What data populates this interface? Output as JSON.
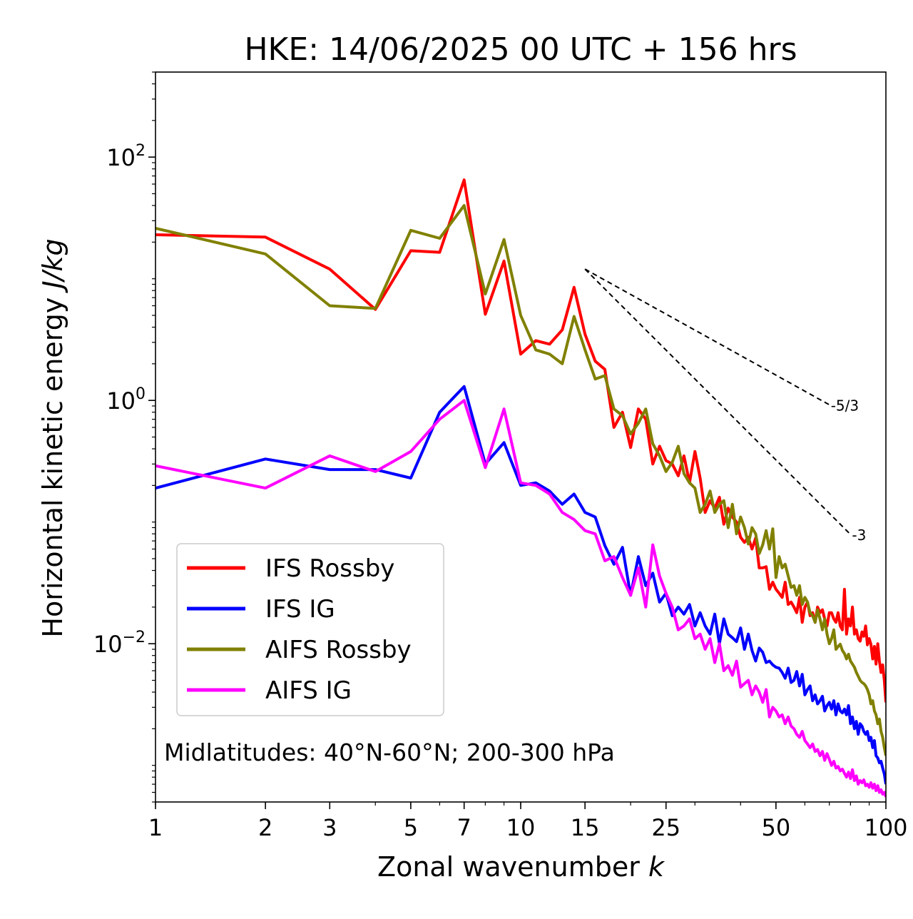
{
  "chart_data": {
    "type": "line",
    "title": "HKE: 14/06/2025 00 UTC + 156 hrs",
    "xlabel_text": "Zonal wavenumber ",
    "xlabel_var": "k",
    "ylabel_text": "Horizontal kinetic energy ",
    "ylabel_unit": "J/kg",
    "x_scale": "log",
    "y_scale": "log",
    "xlim": [
      1,
      100
    ],
    "ylim": [
      0.0005,
      500
    ],
    "x_ticks": [
      1,
      2,
      3,
      5,
      7,
      10,
      15,
      25,
      50,
      100
    ],
    "x_tick_labels": [
      "1",
      "2",
      "3",
      "5",
      "7",
      "10",
      "15",
      "25",
      "50",
      "100"
    ],
    "y_ticks": [
      100,
      1,
      0.01
    ],
    "y_tick_labels": [
      {
        "base": "10",
        "exp": "2"
      },
      {
        "base": "10",
        "exp": "0"
      },
      {
        "base": "10",
        "exp": "−2"
      }
    ],
    "grid": false,
    "legend_position": "lower-left",
    "annotation": "Midlatitudes: 40°N-60°N; 200-300 hPa",
    "reference_lines": [
      {
        "label": "-5/3",
        "slope": -1.6667,
        "x_start": 15,
        "x_end": 70,
        "y_start": 12
      },
      {
        "label": "-3",
        "slope": -3,
        "x_start": 15,
        "x_end": 80,
        "y_start": 12
      }
    ],
    "series": [
      {
        "name": "IFS Rossby",
        "color": "#ff0000",
        "x": [
          1,
          2,
          3,
          4,
          5,
          6,
          7,
          8,
          9,
          10,
          11,
          12,
          13,
          14,
          15,
          16,
          17,
          18,
          19,
          20,
          21,
          22,
          23,
          24,
          25,
          26,
          27,
          28,
          29,
          30,
          31,
          32,
          33,
          34,
          35,
          36,
          37,
          38,
          39,
          40,
          41,
          42,
          43,
          44,
          45,
          46,
          47,
          48,
          49,
          50,
          51,
          52,
          53,
          54,
          55,
          56,
          57,
          58,
          59,
          60,
          61,
          62,
          63,
          64,
          65,
          66,
          67,
          68,
          69,
          70,
          71,
          72,
          73,
          74,
          75,
          76,
          77,
          78,
          79,
          80,
          81,
          82,
          83,
          84,
          85,
          86,
          87,
          88,
          89,
          90,
          91,
          92,
          93,
          94,
          95,
          96,
          97,
          98,
          99,
          100
        ],
        "y": [
          23,
          22,
          12,
          5.6,
          17,
          16.5,
          65,
          5.1,
          14,
          2.4,
          3.1,
          2.9,
          3.8,
          8.5,
          3.5,
          2.1,
          1.8,
          0.6,
          0.8,
          0.41,
          0.85,
          0.7,
          0.3,
          0.42,
          0.32,
          0.3,
          0.24,
          0.35,
          0.21,
          0.38,
          0.23,
          0.12,
          0.15,
          0.13,
          0.16,
          0.096,
          0.13,
          0.11,
          0.1,
          0.075,
          0.068,
          0.075,
          0.06,
          0.074,
          0.042,
          0.042,
          0.043,
          0.028,
          0.032,
          0.028,
          0.026,
          0.024,
          0.032,
          0.021,
          0.022,
          0.02,
          0.018,
          0.024,
          0.015,
          0.02,
          0.022,
          0.017,
          0.018,
          0.015,
          0.02,
          0.018,
          0.019,
          0.016,
          0.014,
          0.018,
          0.018,
          0.016,
          0.015,
          0.018,
          0.014,
          0.013,
          0.028,
          0.012,
          0.016,
          0.014,
          0.02,
          0.012,
          0.013,
          0.011,
          0.0105,
          0.0125,
          0.0115,
          0.014,
          0.0098,
          0.011,
          0.0099,
          0.0075,
          0.0095,
          0.0068,
          0.01,
          0.0072,
          0.0058,
          0.0067,
          0.005,
          0.0033
        ]
      },
      {
        "name": "IFS IG",
        "color": "#0000ff",
        "x": [
          1,
          2,
          3,
          4,
          5,
          6,
          7,
          8,
          9,
          10,
          11,
          12,
          13,
          14,
          15,
          16,
          17,
          18,
          19,
          20,
          21,
          22,
          23,
          24,
          25,
          26,
          27,
          28,
          29,
          30,
          31,
          32,
          33,
          34,
          35,
          36,
          37,
          38,
          39,
          40,
          41,
          42,
          43,
          44,
          45,
          46,
          47,
          48,
          49,
          50,
          51,
          52,
          53,
          54,
          55,
          56,
          57,
          58,
          59,
          60,
          61,
          62,
          63,
          64,
          65,
          66,
          67,
          68,
          69,
          70,
          71,
          72,
          73,
          74,
          75,
          76,
          77,
          78,
          79,
          80,
          81,
          82,
          83,
          84,
          85,
          86,
          87,
          88,
          89,
          90,
          91,
          92,
          93,
          94,
          95,
          96,
          97,
          98,
          99,
          100
        ],
        "y": [
          0.19,
          0.33,
          0.27,
          0.27,
          0.23,
          0.8,
          1.3,
          0.3,
          0.45,
          0.2,
          0.21,
          0.18,
          0.14,
          0.17,
          0.12,
          0.11,
          0.064,
          0.045,
          0.062,
          0.025,
          0.052,
          0.03,
          0.038,
          0.022,
          0.026,
          0.017,
          0.02,
          0.0175,
          0.021,
          0.014,
          0.018,
          0.014,
          0.012,
          0.0175,
          0.01,
          0.016,
          0.012,
          0.0112,
          0.0104,
          0.0135,
          0.009,
          0.012,
          0.0088,
          0.0072,
          0.0092,
          0.0085,
          0.007,
          0.0072,
          0.0067,
          0.0064,
          0.0063,
          0.0058,
          0.0052,
          0.0063,
          0.0048,
          0.005,
          0.0059,
          0.0045,
          0.0056,
          0.0038,
          0.0042,
          0.0045,
          0.0034,
          0.0038,
          0.0032,
          0.0034,
          0.0037,
          0.0028,
          0.0031,
          0.0033,
          0.0029,
          0.0034,
          0.0026,
          0.0032,
          0.0028,
          0.0027,
          0.0029,
          0.0026,
          0.0031,
          0.0022,
          0.0025,
          0.002,
          0.0023,
          0.0018,
          0.0022,
          0.0021,
          0.0019,
          0.0018,
          0.0019,
          0.0016,
          0.0017,
          0.0014,
          0.0016,
          0.0012,
          0.00115,
          0.00105,
          0.00108,
          0.00095,
          0.00085,
          0.0007
        ]
      },
      {
        "name": "AIFS Rossby",
        "color": "#808000",
        "x": [
          1,
          2,
          3,
          4,
          5,
          6,
          7,
          8,
          9,
          10,
          11,
          12,
          13,
          14,
          15,
          16,
          17,
          18,
          19,
          20,
          21,
          22,
          23,
          24,
          25,
          26,
          27,
          28,
          29,
          30,
          31,
          32,
          33,
          34,
          35,
          36,
          37,
          38,
          39,
          40,
          41,
          42,
          43,
          44,
          45,
          46,
          47,
          48,
          49,
          50,
          51,
          52,
          53,
          54,
          55,
          56,
          57,
          58,
          59,
          60,
          61,
          62,
          63,
          64,
          65,
          66,
          67,
          68,
          69,
          70,
          71,
          72,
          73,
          74,
          75,
          76,
          77,
          78,
          79,
          80,
          81,
          82,
          83,
          84,
          85,
          86,
          87,
          88,
          89,
          90,
          91,
          92,
          93,
          94,
          95,
          96,
          97,
          98,
          99,
          100
        ],
        "y": [
          26,
          16,
          6,
          5.7,
          25,
          21.5,
          40,
          7.5,
          21,
          5,
          2.6,
          2.4,
          2,
          4.9,
          2.6,
          1.5,
          1.6,
          0.85,
          0.75,
          0.53,
          0.65,
          0.85,
          0.44,
          0.35,
          0.26,
          0.31,
          0.42,
          0.25,
          0.21,
          0.19,
          0.12,
          0.14,
          0.18,
          0.12,
          0.14,
          0.15,
          0.09,
          0.14,
          0.08,
          0.11,
          0.09,
          0.066,
          0.09,
          0.08,
          0.055,
          0.065,
          0.085,
          0.06,
          0.088,
          0.035,
          0.052,
          0.042,
          0.045,
          0.036,
          0.029,
          0.03,
          0.025,
          0.03,
          0.021,
          0.024,
          0.022,
          0.018,
          0.017,
          0.015,
          0.019,
          0.016,
          0.013,
          0.016,
          0.012,
          0.01,
          0.011,
          0.013,
          0.009,
          0.0095,
          0.0099,
          0.0088,
          0.0083,
          0.0075,
          0.0082,
          0.0072,
          0.0068,
          0.0064,
          0.0058,
          0.0054,
          0.005,
          0.0048,
          0.0047,
          0.0045,
          0.0042,
          0.0038,
          0.0032,
          0.0034,
          0.0028,
          0.0026,
          0.0022,
          0.0024,
          0.0019,
          0.0017,
          0.0014,
          0.0012
        ]
      },
      {
        "name": "AIFS IG",
        "color": "#ff00ff",
        "x": [
          1,
          2,
          3,
          4,
          5,
          6,
          7,
          8,
          9,
          10,
          11,
          12,
          13,
          14,
          15,
          16,
          17,
          18,
          19,
          20,
          21,
          22,
          23,
          24,
          25,
          26,
          27,
          28,
          29,
          30,
          31,
          32,
          33,
          34,
          35,
          36,
          37,
          38,
          39,
          40,
          41,
          42,
          43,
          44,
          45,
          46,
          47,
          48,
          49,
          50,
          51,
          52,
          53,
          54,
          55,
          56,
          57,
          58,
          59,
          60,
          61,
          62,
          63,
          64,
          65,
          66,
          67,
          68,
          69,
          70,
          71,
          72,
          73,
          74,
          75,
          76,
          77,
          78,
          79,
          80,
          81,
          82,
          83,
          84,
          85,
          86,
          87,
          88,
          89,
          90,
          91,
          92,
          93,
          94,
          95,
          96,
          97,
          98,
          99,
          100
        ],
        "y": [
          0.29,
          0.19,
          0.35,
          0.26,
          0.38,
          0.7,
          1,
          0.28,
          0.85,
          0.21,
          0.2,
          0.17,
          0.12,
          0.105,
          0.085,
          0.08,
          0.048,
          0.052,
          0.035,
          0.025,
          0.042,
          0.02,
          0.065,
          0.036,
          0.026,
          0.02,
          0.013,
          0.014,
          0.016,
          0.011,
          0.012,
          0.009,
          0.011,
          0.007,
          0.01,
          0.006,
          0.0066,
          0.0055,
          0.0072,
          0.0044,
          0.0047,
          0.005,
          0.0038,
          0.0045,
          0.004,
          0.0033,
          0.0042,
          0.0025,
          0.003,
          0.0028,
          0.0025,
          0.0026,
          0.0022,
          0.0025,
          0.0021,
          0.002,
          0.0018,
          0.0017,
          0.0019,
          0.0016,
          0.0015,
          0.0014,
          0.0015,
          0.0013,
          0.00135,
          0.0012,
          0.0013,
          0.0011,
          0.00125,
          0.00112,
          0.001,
          0.00108,
          0.00095,
          0.00098,
          0.0009,
          0.00093,
          0.00086,
          0.0008,
          0.00088,
          0.00078,
          0.00092,
          0.00075,
          0.00082,
          0.0007,
          0.00075,
          0.00072,
          0.00076,
          0.00068,
          0.0007,
          0.00066,
          0.00072,
          0.00065,
          0.0007,
          0.00062,
          0.00068,
          0.0006,
          0.00063,
          0.00058,
          0.0006,
          0.00055
        ]
      }
    ]
  }
}
